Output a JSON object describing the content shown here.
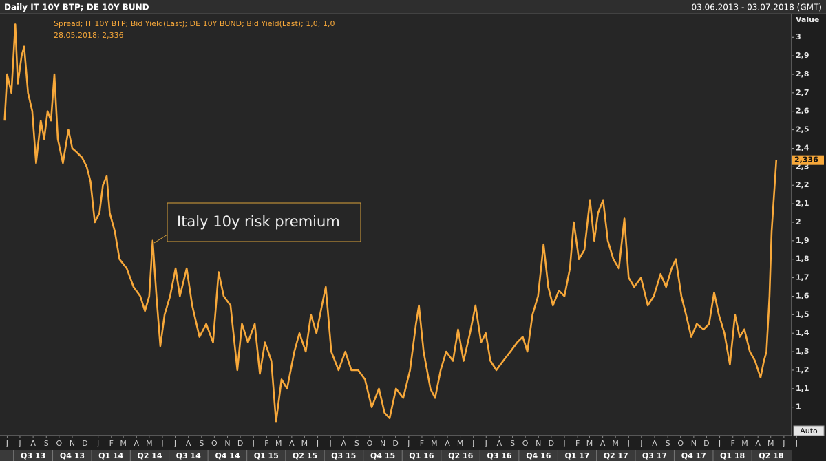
{
  "chart_data": {
    "type": "line",
    "title": "Daily IT 10Y BTP; DE 10Y BUND",
    "date_range": "03.06.2013 - 03.07.2018 (GMT)",
    "legend_text": "Spread; IT 10Y BTP; Bid Yield(Last); DE 10Y BUND; Bid Yield(Last);  1,0; 1,0",
    "cursor_text": "28.05.2018; 2,336",
    "y_axis_label": "Value",
    "annotation": "Italy 10y risk premium",
    "last_marker": {
      "value": 2.336,
      "label": "2,336"
    },
    "button": "Auto",
    "xlim": [
      "2013-06-03",
      "2018-07-03"
    ],
    "ylim": [
      0.85,
      3.12
    ],
    "yticks": [
      1,
      {
        "value": 1.1,
        "label": "1,1"
      },
      {
        "value": 1.2,
        "label": "1,2"
      },
      {
        "value": 1.3,
        "label": "1,3"
      },
      {
        "value": 1.4,
        "label": "1,4"
      },
      {
        "value": 1.5,
        "label": "1,5"
      },
      {
        "value": 1.6,
        "label": "1,6"
      },
      {
        "value": 1.7,
        "label": "1,7"
      },
      {
        "value": 1.8,
        "label": "1,8"
      },
      {
        "value": 1.9,
        "label": "1,9"
      },
      2,
      {
        "value": 2.1,
        "label": "2,1"
      },
      {
        "value": 2.2,
        "label": "2,2"
      },
      {
        "value": 2.3,
        "label": "2,3"
      },
      {
        "value": 2.4,
        "label": "2,4"
      },
      {
        "value": 2.5,
        "label": "2,5"
      },
      {
        "value": 2.6,
        "label": "2,6"
      },
      {
        "value": 2.7,
        "label": "2,7"
      },
      {
        "value": 2.8,
        "label": "2,8"
      },
      {
        "value": 2.9,
        "label": "2,9"
      },
      3
    ],
    "xticks": [
      {
        "value": "2013-06-15",
        "label": "J"
      },
      {
        "value": "2013-07-15",
        "label": "J"
      },
      {
        "value": "2013-08-15",
        "label": "A"
      },
      {
        "value": "2013-09-15",
        "label": "S"
      },
      {
        "value": "2013-10-15",
        "label": "O"
      },
      {
        "value": "2013-11-15",
        "label": "N"
      },
      {
        "value": "2013-12-15",
        "label": "D"
      },
      {
        "value": "2014-01-15",
        "label": "J"
      },
      {
        "value": "2014-02-15",
        "label": "F"
      },
      {
        "value": "2014-03-15",
        "label": "M"
      },
      {
        "value": "2014-04-15",
        "label": "A"
      },
      {
        "value": "2014-05-15",
        "label": "M"
      },
      {
        "value": "2014-06-15",
        "label": "J"
      },
      {
        "value": "2014-07-15",
        "label": "J"
      },
      {
        "value": "2014-08-15",
        "label": "A"
      },
      {
        "value": "2014-09-15",
        "label": "S"
      },
      {
        "value": "2014-10-15",
        "label": "O"
      },
      {
        "value": "2014-11-15",
        "label": "N"
      },
      {
        "value": "2014-12-15",
        "label": "D"
      },
      {
        "value": "2015-01-15",
        "label": "J"
      },
      {
        "value": "2015-02-15",
        "label": "F"
      },
      {
        "value": "2015-03-15",
        "label": "M"
      },
      {
        "value": "2015-04-15",
        "label": "A"
      },
      {
        "value": "2015-05-15",
        "label": "M"
      },
      {
        "value": "2015-06-15",
        "label": "J"
      },
      {
        "value": "2015-07-15",
        "label": "J"
      },
      {
        "value": "2015-08-15",
        "label": "A"
      },
      {
        "value": "2015-09-15",
        "label": "S"
      },
      {
        "value": "2015-10-15",
        "label": "O"
      },
      {
        "value": "2015-11-15",
        "label": "N"
      },
      {
        "value": "2015-12-15",
        "label": "D"
      },
      {
        "value": "2016-01-15",
        "label": "J"
      },
      {
        "value": "2016-02-15",
        "label": "F"
      },
      {
        "value": "2016-03-15",
        "label": "M"
      },
      {
        "value": "2016-04-15",
        "label": "A"
      },
      {
        "value": "2016-05-15",
        "label": "M"
      },
      {
        "value": "2016-06-15",
        "label": "J"
      },
      {
        "value": "2016-07-15",
        "label": "J"
      },
      {
        "value": "2016-08-15",
        "label": "A"
      },
      {
        "value": "2016-09-15",
        "label": "S"
      },
      {
        "value": "2016-10-15",
        "label": "O"
      },
      {
        "value": "2016-11-15",
        "label": "N"
      },
      {
        "value": "2016-12-15",
        "label": "D"
      },
      {
        "value": "2017-01-15",
        "label": "J"
      },
      {
        "value": "2017-02-15",
        "label": "F"
      },
      {
        "value": "2017-03-15",
        "label": "M"
      },
      {
        "value": "2017-04-15",
        "label": "A"
      },
      {
        "value": "2017-05-15",
        "label": "M"
      },
      {
        "value": "2017-06-15",
        "label": "J"
      },
      {
        "value": "2017-07-15",
        "label": "J"
      },
      {
        "value": "2017-08-15",
        "label": "A"
      },
      {
        "value": "2017-09-15",
        "label": "S"
      },
      {
        "value": "2017-10-15",
        "label": "O"
      },
      {
        "value": "2017-11-15",
        "label": "N"
      },
      {
        "value": "2017-12-15",
        "label": "D"
      },
      {
        "value": "2018-01-15",
        "label": "J"
      },
      {
        "value": "2018-02-15",
        "label": "F"
      },
      {
        "value": "2018-03-15",
        "label": "M"
      },
      {
        "value": "2018-04-15",
        "label": "A"
      },
      {
        "value": "2018-05-15",
        "label": "M"
      },
      {
        "value": "2018-06-15",
        "label": "J"
      },
      {
        "value": "2018-07-15",
        "label": "J"
      }
    ],
    "quarters": [
      {
        "value": "2013-08-15",
        "label": "Q3 13"
      },
      {
        "value": "2013-11-15",
        "label": "Q4 13"
      },
      {
        "value": "2014-02-14",
        "label": "Q1 14"
      },
      {
        "value": "2014-05-16",
        "label": "Q2 14"
      },
      {
        "value": "2014-08-15",
        "label": "Q3 14"
      },
      {
        "value": "2014-11-15",
        "label": "Q4 14"
      },
      {
        "value": "2015-02-14",
        "label": "Q1 15"
      },
      {
        "value": "2015-05-16",
        "label": "Q2 15"
      },
      {
        "value": "2015-08-15",
        "label": "Q3 15"
      },
      {
        "value": "2015-11-15",
        "label": "Q4 15"
      },
      {
        "value": "2016-02-14",
        "label": "Q1 16"
      },
      {
        "value": "2016-05-16",
        "label": "Q2 16"
      },
      {
        "value": "2016-08-15",
        "label": "Q3 16"
      },
      {
        "value": "2016-11-15",
        "label": "Q4 16"
      },
      {
        "value": "2017-02-14",
        "label": "Q1 17"
      },
      {
        "value": "2017-05-16",
        "label": "Q2 17"
      },
      {
        "value": "2017-08-15",
        "label": "Q3 17"
      },
      {
        "value": "2017-11-15",
        "label": "Q4 17"
      },
      {
        "value": "2018-02-14",
        "label": "Q1 18"
      },
      {
        "value": "2018-05-16",
        "label": "Q2 18"
      }
    ],
    "series": [
      {
        "name": "Spread",
        "color": "#f7a83a",
        "x": [
          "2013-06-09",
          "2013-06-15",
          "2013-06-25",
          "2013-07-04",
          "2013-07-10",
          "2013-07-19",
          "2013-07-25",
          "2013-08-03",
          "2013-08-13",
          "2013-08-22",
          "2013-09-02",
          "2013-09-10",
          "2013-09-18",
          "2013-09-26",
          "2013-10-04",
          "2013-10-12",
          "2013-10-24",
          "2013-11-06",
          "2013-11-15",
          "2013-11-25",
          "2013-12-08",
          "2013-12-19",
          "2013-12-28",
          "2014-01-07",
          "2014-01-18",
          "2014-01-26",
          "2014-02-04",
          "2014-02-11",
          "2014-02-23",
          "2014-03-06",
          "2014-03-23",
          "2014-04-08",
          "2014-04-24",
          "2014-05-05",
          "2014-05-15",
          "2014-05-23",
          "2014-06-01",
          "2014-06-10",
          "2014-06-20",
          "2014-07-03",
          "2014-07-16",
          "2014-07-26",
          "2014-08-11",
          "2014-08-24",
          "2014-09-10",
          "2014-09-26",
          "2014-10-12",
          "2014-10-25",
          "2014-11-06",
          "2014-11-22",
          "2014-12-08",
          "2014-12-19",
          "2015-01-02",
          "2015-01-18",
          "2015-01-30",
          "2015-02-11",
          "2015-02-26",
          "2015-03-09",
          "2015-03-22",
          "2015-04-04",
          "2015-04-21",
          "2015-05-03",
          "2015-05-18",
          "2015-05-30",
          "2015-06-12",
          "2015-06-25",
          "2015-07-04",
          "2015-07-17",
          "2015-08-03",
          "2015-08-19",
          "2015-09-02",
          "2015-09-18",
          "2015-10-04",
          "2015-10-20",
          "2015-11-06",
          "2015-11-19",
          "2015-12-01",
          "2015-12-16",
          "2016-01-02",
          "2016-01-18",
          "2016-02-01",
          "2016-02-08",
          "2016-02-19",
          "2016-03-06",
          "2016-03-17",
          "2016-03-30",
          "2016-04-12",
          "2016-04-28",
          "2016-05-10",
          "2016-05-23",
          "2016-06-07",
          "2016-06-20",
          "2016-07-03",
          "2016-07-14",
          "2016-07-25",
          "2016-08-08",
          "2016-08-24",
          "2016-09-10",
          "2016-09-26",
          "2016-10-09",
          "2016-10-20",
          "2016-11-01",
          "2016-11-14",
          "2016-11-27",
          "2016-12-08",
          "2016-12-19",
          "2017-01-02",
          "2017-01-15",
          "2017-01-28",
          "2017-02-06",
          "2017-02-18",
          "2017-03-03",
          "2017-03-16",
          "2017-03-26",
          "2017-04-04",
          "2017-04-16",
          "2017-04-27",
          "2017-05-10",
          "2017-05-23",
          "2017-06-05",
          "2017-06-15",
          "2017-06-28",
          "2017-07-14",
          "2017-07-30",
          "2017-08-13",
          "2017-08-29",
          "2017-09-11",
          "2017-09-24",
          "2017-10-04",
          "2017-10-17",
          "2017-10-28",
          "2017-11-09",
          "2017-11-22",
          "2017-12-08",
          "2017-12-21",
          "2018-01-02",
          "2018-01-13",
          "2018-01-26",
          "2018-02-08",
          "2018-02-20",
          "2018-03-03",
          "2018-03-14",
          "2018-03-27",
          "2018-04-08",
          "2018-04-21",
          "2018-04-29",
          "2018-05-05",
          "2018-05-12",
          "2018-05-17",
          "2018-05-28"
        ],
        "values": [
          2.55,
          2.8,
          2.7,
          3.07,
          2.75,
          2.9,
          2.95,
          2.7,
          2.6,
          2.32,
          2.55,
          2.45,
          2.6,
          2.55,
          2.8,
          2.45,
          2.32,
          2.5,
          2.4,
          2.38,
          2.35,
          2.3,
          2.22,
          2.0,
          2.05,
          2.2,
          2.25,
          2.05,
          1.95,
          1.8,
          1.75,
          1.65,
          1.6,
          1.52,
          1.6,
          1.9,
          1.6,
          1.33,
          1.5,
          1.6,
          1.75,
          1.6,
          1.75,
          1.55,
          1.38,
          1.45,
          1.35,
          1.73,
          1.6,
          1.55,
          1.2,
          1.45,
          1.35,
          1.45,
          1.18,
          1.35,
          1.25,
          0.92,
          1.15,
          1.1,
          1.3,
          1.4,
          1.3,
          1.5,
          1.4,
          1.55,
          1.65,
          1.3,
          1.2,
          1.3,
          1.2,
          1.2,
          1.15,
          1.0,
          1.1,
          0.97,
          0.94,
          1.1,
          1.05,
          1.2,
          1.45,
          1.55,
          1.3,
          1.1,
          1.05,
          1.2,
          1.3,
          1.25,
          1.42,
          1.25,
          1.4,
          1.55,
          1.35,
          1.4,
          1.25,
          1.2,
          1.25,
          1.3,
          1.35,
          1.38,
          1.3,
          1.5,
          1.6,
          1.88,
          1.65,
          1.55,
          1.63,
          1.6,
          1.75,
          2.0,
          1.8,
          1.85,
          2.12,
          1.9,
          2.05,
          2.12,
          1.9,
          1.8,
          1.75,
          2.02,
          1.7,
          1.65,
          1.7,
          1.55,
          1.6,
          1.72,
          1.65,
          1.75,
          1.8,
          1.6,
          1.5,
          1.38,
          1.45,
          1.42,
          1.45,
          1.62,
          1.5,
          1.4,
          1.23,
          1.5,
          1.38,
          1.42,
          1.3,
          1.25,
          1.16,
          1.25,
          1.3,
          1.6,
          1.95,
          2.336
        ]
      }
    ]
  }
}
